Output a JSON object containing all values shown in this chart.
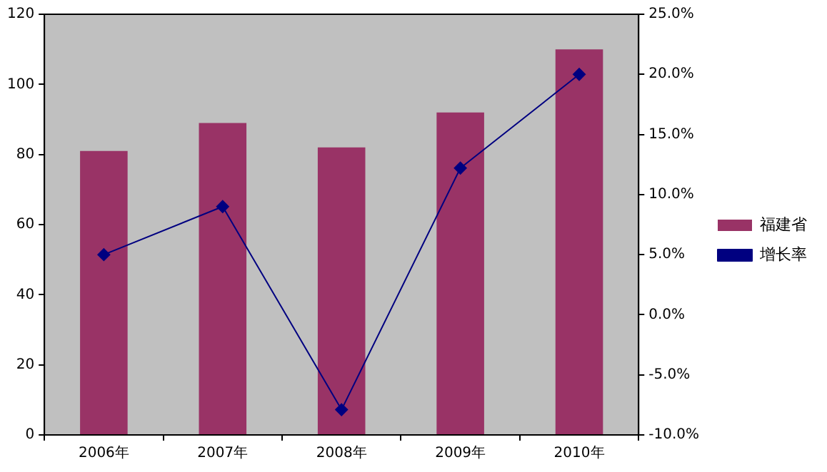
{
  "chart_data": {
    "type": "bar",
    "categories": [
      "2006年",
      "2007年",
      "2008年",
      "2009年",
      "2010年"
    ],
    "series": [
      {
        "name": "福建省",
        "type": "bar",
        "color": "#993366",
        "values": [
          81,
          89,
          82,
          92,
          110
        ]
      },
      {
        "name": "增长率",
        "type": "line",
        "axis": "y2",
        "color": "#000080",
        "values": [
          5.0,
          9.0,
          -7.9,
          12.2,
          20.0
        ]
      }
    ],
    "ylim": [
      0,
      120
    ],
    "yticks": [
      0,
      20,
      40,
      60,
      80,
      100,
      120
    ],
    "y2lim": [
      -10,
      25
    ],
    "y2ticks": [
      {
        "value": -10,
        "label": "-10.0%"
      },
      {
        "value": -5,
        "label": "-5.0%"
      },
      {
        "value": 0,
        "label": "0.0%"
      },
      {
        "value": 5,
        "label": "5.0%"
      },
      {
        "value": 10,
        "label": "10.0%"
      },
      {
        "value": 15,
        "label": "15.0%"
      },
      {
        "value": 20,
        "label": "20.0%"
      },
      {
        "value": 25,
        "label": "25.0%"
      }
    ],
    "grid": false,
    "legend": "right",
    "marker": "diamond",
    "line_style": "solid"
  }
}
